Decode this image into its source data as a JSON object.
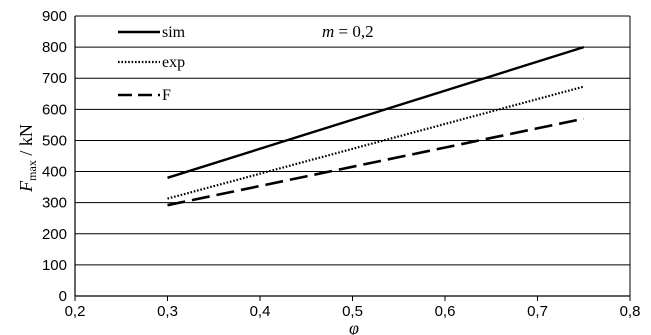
{
  "chart_data": {
    "type": "line",
    "xlim": [
      0.2,
      0.8
    ],
    "ylim": [
      0,
      900
    ],
    "x_ticks": [
      "0,2",
      "0,3",
      "0,4",
      "0,5",
      "0,6",
      "0,7",
      "0,8"
    ],
    "y_ticks": [
      "0",
      "100",
      "200",
      "300",
      "400",
      "500",
      "600",
      "700",
      "800",
      "900"
    ],
    "xlabel": "φ",
    "ylabel_main": "F",
    "ylabel_sub": "max",
    "ylabel_unit": " / kN",
    "annotation": "m = 0,2",
    "annotation_var": "m",
    "annotation_rest": " = 0,2",
    "grid": "horizontal",
    "legend_position": "top-left",
    "series": [
      {
        "name": "sim",
        "style": "solid",
        "color": "#000000",
        "x": [
          0.3,
          0.75
        ],
        "y": [
          380,
          800
        ]
      },
      {
        "name": "exp",
        "style": "dotted",
        "color": "#000000",
        "x": [
          0.3,
          0.75
        ],
        "y": [
          313,
          673
        ]
      },
      {
        "name": "F",
        "style": "dashed",
        "color": "#000000",
        "x": [
          0.3,
          0.75
        ],
        "y": [
          292,
          570
        ]
      }
    ]
  }
}
